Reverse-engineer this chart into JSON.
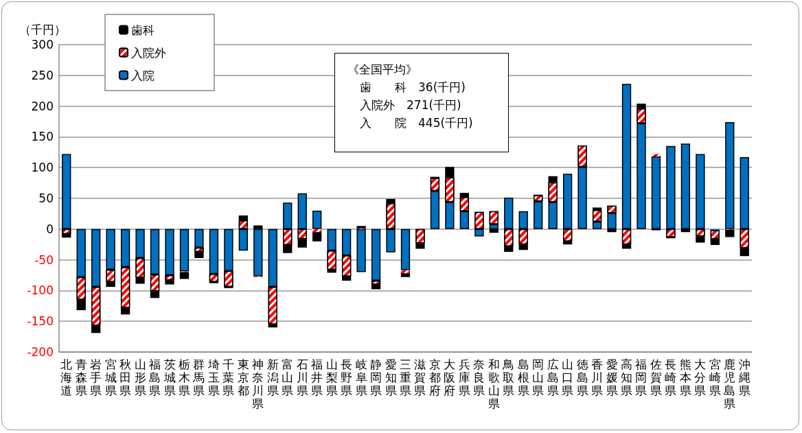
{
  "chart_data": {
    "type": "bar",
    "stacked": true,
    "ylabel": "（千円）",
    "categories": [
      "北海道",
      "青森県",
      "岩手県",
      "宮城県",
      "秋田県",
      "山形県",
      "福島県",
      "茨城県",
      "栃木県",
      "群馬県",
      "埼玉県",
      "千葉県",
      "東京都",
      "神奈川県",
      "新潟県",
      "富山県",
      "石川県",
      "福井県",
      "山梨県",
      "長野県",
      "岐阜県",
      "静岡県",
      "愛知県",
      "三重県",
      "滋賀県",
      "京都府",
      "大阪府",
      "兵庫県",
      "奈良県",
      "和歌山県",
      "鳥取県",
      "島根県",
      "岡山県",
      "広島県",
      "山口県",
      "徳島県",
      "香川県",
      "愛媛県",
      "高知県",
      "福岡県",
      "佐賀県",
      "長崎県",
      "熊本県",
      "大分県",
      "宮崎県",
      "鹿児島県",
      "沖縄県"
    ],
    "series": [
      {
        "name": "入院",
        "color": "#0070c0",
        "values": [
          122,
          -78,
          -94,
          -66,
          -62,
          -47,
          -74,
          -75,
          -69,
          -30,
          -73,
          -68,
          -35,
          -77,
          -94,
          43,
          58,
          30,
          -35,
          -43,
          -70,
          -84,
          -38,
          -67,
          0,
          62,
          44,
          29,
          -12,
          8,
          51,
          29,
          45,
          44,
          90,
          101,
          12,
          26,
          236,
          172,
          118,
          135,
          139,
          122,
          -2,
          174,
          117
        ]
      },
      {
        "name": "入院外",
        "color": "#ff0000",
        "values": [
          -8,
          -37,
          -63,
          -20,
          -66,
          -32,
          -27,
          -8,
          -1,
          -7,
          -13,
          -26,
          14,
          -1,
          -61,
          -26,
          -16,
          -5,
          -31,
          -34,
          1,
          -6,
          42,
          -5,
          -23,
          21,
          40,
          23,
          28,
          21,
          -28,
          -25,
          10,
          32,
          -20,
          35,
          19,
          12,
          -25,
          24,
          4,
          -13,
          0,
          -12,
          -14,
          -1,
          -31
        ]
      },
      {
        "name": "歯科",
        "color": "#000000",
        "values": [
          -6,
          -17,
          -12,
          -8,
          -11,
          -10,
          -11,
          -7,
          -11,
          -10,
          -2,
          -2,
          8,
          6,
          -5,
          -13,
          -14,
          -15,
          -5,
          -7,
          4,
          -8,
          7,
          -6,
          -9,
          2,
          17,
          7,
          0,
          -6,
          -9,
          -9,
          1,
          10,
          -5,
          0,
          4,
          -5,
          -7,
          8,
          -2,
          -2,
          -5,
          -10,
          -10,
          -12,
          -13
        ]
      }
    ],
    "ylim": [
      -200,
      300
    ],
    "yticks": [
      -200,
      -150,
      -100,
      -50,
      0,
      50,
      100,
      150,
      200,
      250,
      300
    ],
    "grid": "y",
    "legend": "top left",
    "annotations": [
      "《全国平均》",
      "歯　　科　36(千円)",
      "入院外　271(千円)",
      "入　　院　445(千円)"
    ]
  }
}
